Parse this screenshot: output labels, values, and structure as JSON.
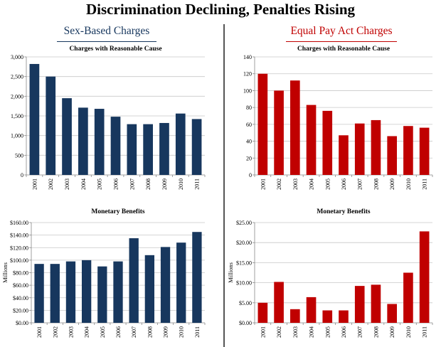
{
  "page": {
    "title": "Discrimination Declining, Penalties Rising",
    "left_section": "Sex-Based Charges",
    "right_section": "Equal Pay Act Charges"
  },
  "colors": {
    "left": "#17375e",
    "right": "#c00000"
  },
  "chart_data": [
    {
      "id": "sex-charges",
      "type": "bar",
      "title": "Charges with Reasonable Cause",
      "xlabel": "",
      "ylabel": "",
      "categories": [
        "2001",
        "2002",
        "2003",
        "2004",
        "2005",
        "2006",
        "2007",
        "2008",
        "2009",
        "2010",
        "2011"
      ],
      "values": [
        2820,
        2500,
        1950,
        1710,
        1680,
        1480,
        1290,
        1290,
        1320,
        1560,
        1420
      ],
      "ylim": [
        0,
        3000
      ],
      "yticks": [
        0,
        500,
        1000,
        1500,
        2000,
        2500,
        3000
      ],
      "ytick_labels": [
        "0",
        "500",
        "1,000",
        "1,500",
        "2,000",
        "2,500",
        "3,000"
      ],
      "color": "#17375e"
    },
    {
      "id": "epa-charges",
      "type": "bar",
      "title": "Charges with Reasonable Cause",
      "xlabel": "",
      "ylabel": "",
      "categories": [
        "2001",
        "2002",
        "2003",
        "2004",
        "2005",
        "2006",
        "2007",
        "2008",
        "2009",
        "2010",
        "2011"
      ],
      "values": [
        120,
        100,
        112,
        83,
        76,
        47,
        61,
        65,
        46,
        58,
        56
      ],
      "ylim": [
        0,
        140
      ],
      "yticks": [
        0,
        20,
        40,
        60,
        80,
        100,
        120,
        140
      ],
      "ytick_labels": [
        "0",
        "20",
        "40",
        "60",
        "80",
        "100",
        "120",
        "140"
      ],
      "color": "#c00000"
    },
    {
      "id": "sex-benefits",
      "type": "bar",
      "title": "Monetary Benefits",
      "xlabel": "",
      "ylabel": "Millions",
      "categories": [
        "2001",
        "2002",
        "2003",
        "2004",
        "2005",
        "2006",
        "2007",
        "2008",
        "2009",
        "2010",
        "2011"
      ],
      "values": [
        94,
        94,
        98,
        100,
        90,
        98,
        135,
        108,
        121,
        128,
        145
      ],
      "ylim": [
        0,
        160
      ],
      "yticks": [
        0,
        20,
        40,
        60,
        80,
        100,
        120,
        140,
        160
      ],
      "ytick_labels": [
        "$0.00",
        "$20.00",
        "$40.00",
        "$60.00",
        "$80.00",
        "$100.00",
        "$120.00",
        "$140.00",
        "$160.00"
      ],
      "color": "#17375e"
    },
    {
      "id": "epa-benefits",
      "type": "bar",
      "title": "Monetary Benefits",
      "xlabel": "",
      "ylabel": "Millions",
      "categories": [
        "2001",
        "2002",
        "2003",
        "2004",
        "2005",
        "2006",
        "2007",
        "2008",
        "2009",
        "2010",
        "2011"
      ],
      "values": [
        5.0,
        10.2,
        3.4,
        6.4,
        3.1,
        3.1,
        9.2,
        9.5,
        4.7,
        12.5,
        22.8
      ],
      "ylim": [
        0,
        25
      ],
      "yticks": [
        0,
        5,
        10,
        15,
        20,
        25
      ],
      "ytick_labels": [
        "$0.00",
        "$5.00",
        "$10.00",
        "$15.00",
        "$20.00",
        "$25.00"
      ],
      "color": "#c00000"
    }
  ]
}
